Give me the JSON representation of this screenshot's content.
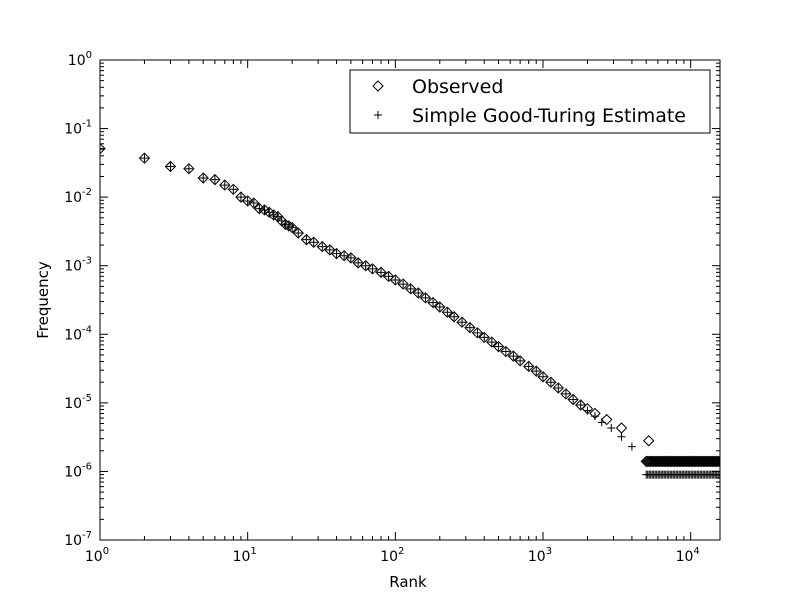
{
  "chart_data": {
    "type": "scatter",
    "title": "",
    "xlabel": "Rank",
    "ylabel": "Frequency",
    "xscale": "log",
    "yscale": "log",
    "xlim": [
      1,
      15800
    ],
    "ylim": [
      1e-07,
      1
    ],
    "x_ticks": [
      {
        "value": 1,
        "base": "10",
        "exp": "0"
      },
      {
        "value": 10,
        "base": "10",
        "exp": "1"
      },
      {
        "value": 100,
        "base": "10",
        "exp": "2"
      },
      {
        "value": 1000,
        "base": "10",
        "exp": "3"
      },
      {
        "value": 10000,
        "base": "10",
        "exp": "4"
      }
    ],
    "y_ticks": [
      {
        "value": 1,
        "base": "10",
        "exp": "0"
      },
      {
        "value": 0.1,
        "base": "10",
        "exp": "-1"
      },
      {
        "value": 0.01,
        "base": "10",
        "exp": "-2"
      },
      {
        "value": 0.001,
        "base": "10",
        "exp": "-3"
      },
      {
        "value": 0.0001,
        "base": "10",
        "exp": "-4"
      },
      {
        "value": 1e-05,
        "base": "10",
        "exp": "-5"
      },
      {
        "value": 1e-06,
        "base": "10",
        "exp": "-6"
      },
      {
        "value": 1e-07,
        "base": "10",
        "exp": "-7"
      }
    ],
    "grid": false,
    "legend_position": "top-right",
    "series": [
      {
        "name": "Observed",
        "marker": "diamond",
        "color": "#000000",
        "points": [
          [
            1,
            0.051
          ],
          [
            2,
            0.037
          ],
          [
            3,
            0.028
          ],
          [
            4,
            0.026
          ],
          [
            5,
            0.019
          ],
          [
            6,
            0.018
          ],
          [
            7,
            0.015
          ],
          [
            8,
            0.013
          ],
          [
            9,
            0.01
          ],
          [
            10,
            0.0088
          ],
          [
            11,
            0.0082
          ],
          [
            12,
            0.0068
          ],
          [
            13,
            0.0065
          ],
          [
            14,
            0.006
          ],
          [
            15,
            0.0055
          ],
          [
            16,
            0.0052
          ],
          [
            17,
            0.0045
          ],
          [
            18,
            0.004
          ],
          [
            19,
            0.0038
          ],
          [
            20,
            0.0036
          ],
          [
            22,
            0.003
          ],
          [
            25,
            0.0024
          ],
          [
            28,
            0.0022
          ],
          [
            32,
            0.0019
          ],
          [
            36,
            0.0017
          ],
          [
            40,
            0.0015
          ],
          [
            45,
            0.0014
          ],
          [
            50,
            0.0013
          ],
          [
            56,
            0.0011
          ],
          [
            63,
            0.001
          ],
          [
            70,
            0.0009
          ],
          [
            80,
            0.0008
          ],
          [
            90,
            0.0007
          ],
          [
            100,
            0.00062
          ],
          [
            113,
            0.00054
          ],
          [
            127,
            0.00046
          ],
          [
            143,
            0.0004
          ],
          [
            160,
            0.00034
          ],
          [
            180,
            0.00029
          ],
          [
            200,
            0.00025
          ],
          [
            225,
            0.00021
          ],
          [
            250,
            0.00018
          ],
          [
            283,
            0.00015
          ],
          [
            320,
            0.000125
          ],
          [
            360,
            0.000105
          ],
          [
            400,
            9e-05
          ],
          [
            450,
            7.7e-05
          ],
          [
            500,
            6.6e-05
          ],
          [
            560,
            5.6e-05
          ],
          [
            630,
            4.8e-05
          ],
          [
            700,
            4.1e-05
          ],
          [
            800,
            3.4e-05
          ],
          [
            900,
            2.9e-05
          ],
          [
            1000,
            2.4e-05
          ],
          [
            1130,
            2e-05
          ],
          [
            1270,
            1.65e-05
          ],
          [
            1430,
            1.35e-05
          ],
          [
            1600,
            1.12e-05
          ],
          [
            1800,
            9.3e-06
          ],
          [
            2000,
            8.2e-06
          ],
          [
            2250,
            7e-06
          ],
          [
            2700,
            5.7e-06
          ],
          [
            3400,
            4.3e-06
          ],
          [
            5200,
            2.8e-06
          ]
        ],
        "tail": {
          "y": 1.4e-06,
          "x_start": 5000,
          "x_end": 15800
        }
      },
      {
        "name": "Simple Good-Turing Estimate",
        "marker": "plus",
        "color": "#000000",
        "points": [
          [
            1,
            0.051
          ],
          [
            2,
            0.037
          ],
          [
            3,
            0.028
          ],
          [
            4,
            0.026
          ],
          [
            5,
            0.019
          ],
          [
            6,
            0.018
          ],
          [
            7,
            0.015
          ],
          [
            8,
            0.013
          ],
          [
            9,
            0.01
          ],
          [
            10,
            0.0088
          ],
          [
            11,
            0.0082
          ],
          [
            12,
            0.0068
          ],
          [
            13,
            0.0065
          ],
          [
            14,
            0.006
          ],
          [
            15,
            0.0055
          ],
          [
            16,
            0.0052
          ],
          [
            17,
            0.0045
          ],
          [
            18,
            0.004
          ],
          [
            19,
            0.0038
          ],
          [
            20,
            0.0036
          ],
          [
            22,
            0.003
          ],
          [
            25,
            0.0024
          ],
          [
            28,
            0.0022
          ],
          [
            32,
            0.0019
          ],
          [
            36,
            0.0017
          ],
          [
            40,
            0.0015
          ],
          [
            45,
            0.0014
          ],
          [
            50,
            0.0013
          ],
          [
            56,
            0.0011
          ],
          [
            63,
            0.001
          ],
          [
            70,
            0.0009
          ],
          [
            80,
            0.0008
          ],
          [
            90,
            0.0007
          ],
          [
            100,
            0.00062
          ],
          [
            113,
            0.00054
          ],
          [
            127,
            0.00046
          ],
          [
            143,
            0.0004
          ],
          [
            160,
            0.00034
          ],
          [
            180,
            0.00029
          ],
          [
            200,
            0.00025
          ],
          [
            225,
            0.00021
          ],
          [
            250,
            0.00018
          ],
          [
            283,
            0.00015
          ],
          [
            320,
            0.000125
          ],
          [
            360,
            0.000105
          ],
          [
            400,
            9e-05
          ],
          [
            450,
            7.7e-05
          ],
          [
            500,
            6.6e-05
          ],
          [
            560,
            5.6e-05
          ],
          [
            630,
            4.8e-05
          ],
          [
            700,
            4.1e-05
          ],
          [
            800,
            3.4e-05
          ],
          [
            900,
            2.9e-05
          ],
          [
            1000,
            2.4e-05
          ],
          [
            1130,
            2e-05
          ],
          [
            1270,
            1.65e-05
          ],
          [
            1430,
            1.35e-05
          ],
          [
            1600,
            1.12e-05
          ],
          [
            1800,
            9.3e-06
          ],
          [
            2000,
            7.7e-06
          ],
          [
            2250,
            6.4e-06
          ],
          [
            2500,
            5.2e-06
          ],
          [
            2900,
            4.3e-06
          ],
          [
            3400,
            3.2e-06
          ],
          [
            4000,
            2.3e-06
          ]
        ],
        "tail": {
          "y": 9e-07,
          "x_start": 5000,
          "x_end": 15800
        }
      }
    ]
  }
}
